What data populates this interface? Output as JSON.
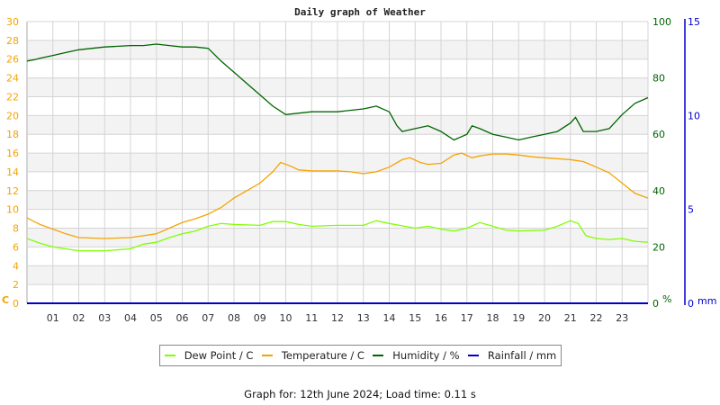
{
  "header": {
    "title": "Daily graph of Weather"
  },
  "footer": {
    "text": "Graph for: 12th June 2024; Load time: 0.11 s"
  },
  "colors": {
    "dew_point": "#7fff00",
    "temperature": "#f5a300",
    "humidity": "#006400",
    "rainfall": "#0000cc",
    "grid": "#d4d4d4",
    "band": "#f3f3f3",
    "temp_axis": "#f5a300",
    "humidity_axis": "#006400",
    "rain_axis": "#0000cc"
  },
  "legend": [
    {
      "label": "Dew Point / C",
      "color": "#7fff00"
    },
    {
      "label": "Temperature / C",
      "color": "#f5a300"
    },
    {
      "label": "Humidity / %",
      "color": "#006400"
    },
    {
      "label": "Rainfall / mm",
      "color": "#0000cc"
    }
  ],
  "axes": {
    "left": {
      "unit": "C",
      "ticks": [
        "0",
        "2",
        "4",
        "6",
        "8",
        "10",
        "12",
        "14",
        "16",
        "18",
        "20",
        "22",
        "24",
        "26",
        "28",
        "30"
      ]
    },
    "right_humidity": {
      "unit": "%",
      "ticks": [
        "0",
        "20",
        "40",
        "60",
        "80",
        "100"
      ]
    },
    "right_rain": {
      "unit": "mm",
      "ticks": [
        "0",
        "5",
        "10",
        "15"
      ]
    },
    "x": {
      "ticks": [
        "01",
        "02",
        "03",
        "04",
        "05",
        "06",
        "07",
        "08",
        "09",
        "10",
        "11",
        "12",
        "13",
        "14",
        "15",
        "16",
        "17",
        "18",
        "19",
        "20",
        "21",
        "22",
        "23"
      ]
    }
  },
  "chart_data": {
    "type": "line",
    "title": "Daily graph of Weather",
    "xlabel": "Hour",
    "x_range": [
      0,
      24
    ],
    "ylim_left": [
      0,
      30
    ],
    "ylim_humidity": [
      0,
      100
    ],
    "ylim_rain": [
      0,
      15
    ],
    "grid": true,
    "legend_position": "bottom",
    "series": [
      {
        "name": "Dew Point / C",
        "axis": "left",
        "x": [
          0,
          0.5,
          1,
          1.5,
          2,
          3,
          4,
          4.5,
          5,
          5.5,
          6,
          6.5,
          7,
          7.5,
          8,
          9,
          9.5,
          10,
          10.5,
          11,
          12,
          13,
          13.5,
          14,
          15,
          15.5,
          16,
          16.5,
          17,
          17.5,
          18,
          18.5,
          19,
          20,
          20.5,
          21,
          21.3,
          21.6,
          22,
          22.5,
          23,
          23.5,
          24
        ],
        "values": [
          6.9,
          6.4,
          6.0,
          5.8,
          5.6,
          5.6,
          5.8,
          6.3,
          6.5,
          7.0,
          7.4,
          7.7,
          8.2,
          8.5,
          8.4,
          8.3,
          8.7,
          8.7,
          8.4,
          8.2,
          8.3,
          8.3,
          8.8,
          8.5,
          8.0,
          8.2,
          7.9,
          7.7,
          8.0,
          8.6,
          8.2,
          7.8,
          7.7,
          7.8,
          8.2,
          8.8,
          8.5,
          7.2,
          6.9,
          6.8,
          6.9,
          6.6,
          6.5
        ]
      },
      {
        "name": "Temperature / C",
        "axis": "left",
        "x": [
          0,
          0.5,
          1,
          1.5,
          2,
          3,
          4,
          4.5,
          5,
          5.5,
          6,
          6.5,
          7,
          7.5,
          8,
          8.5,
          9,
          9.5,
          9.8,
          10.2,
          10.5,
          11,
          12,
          12.5,
          13,
          13.5,
          14,
          14.5,
          14.8,
          15.2,
          15.5,
          16,
          16.5,
          16.8,
          17.2,
          17.5,
          18,
          18.5,
          19,
          19.5,
          20,
          21,
          21.5,
          22,
          22.5,
          23,
          23.5,
          24
        ],
        "values": [
          9.1,
          8.4,
          7.9,
          7.4,
          7.0,
          6.9,
          7.0,
          7.2,
          7.4,
          8.0,
          8.6,
          9.0,
          9.5,
          10.2,
          11.2,
          12.0,
          12.8,
          14.0,
          15.0,
          14.6,
          14.2,
          14.1,
          14.1,
          14.0,
          13.8,
          14.0,
          14.5,
          15.3,
          15.5,
          15.0,
          14.8,
          14.9,
          15.8,
          16.0,
          15.5,
          15.7,
          15.9,
          15.9,
          15.8,
          15.6,
          15.5,
          15.3,
          15.1,
          14.5,
          13.9,
          12.8,
          11.7,
          11.2
        ]
      },
      {
        "name": "Humidity / %",
        "axis": "right_humidity",
        "x": [
          0,
          0.3,
          0.5,
          1,
          1.5,
          2,
          3,
          4,
          4.5,
          5,
          5.5,
          6,
          6.5,
          7,
          7.5,
          8,
          8.5,
          9,
          9.5,
          10,
          11,
          12,
          13,
          13.5,
          14,
          14.3,
          14.5,
          15,
          15.5,
          16,
          16.5,
          17,
          17.2,
          17.5,
          18,
          18.5,
          19,
          19.5,
          20,
          20.5,
          21,
          21.2,
          21.5,
          22,
          22.5,
          23,
          23.5,
          24
        ],
        "values": [
          86,
          86.5,
          87,
          88,
          89,
          90,
          91,
          91.5,
          91.5,
          92,
          91.5,
          91,
          91,
          90.5,
          86,
          82,
          78,
          74,
          70,
          67,
          68,
          68,
          69,
          70,
          68,
          63,
          61,
          62,
          63,
          61,
          58,
          60,
          63,
          62,
          60,
          59,
          58,
          59,
          60,
          61,
          64,
          66,
          61,
          61,
          62,
          67,
          71,
          73
        ]
      },
      {
        "name": "Rainfall / mm",
        "axis": "right_rain",
        "x": [
          0,
          24
        ],
        "values": [
          0,
          0
        ]
      }
    ]
  }
}
